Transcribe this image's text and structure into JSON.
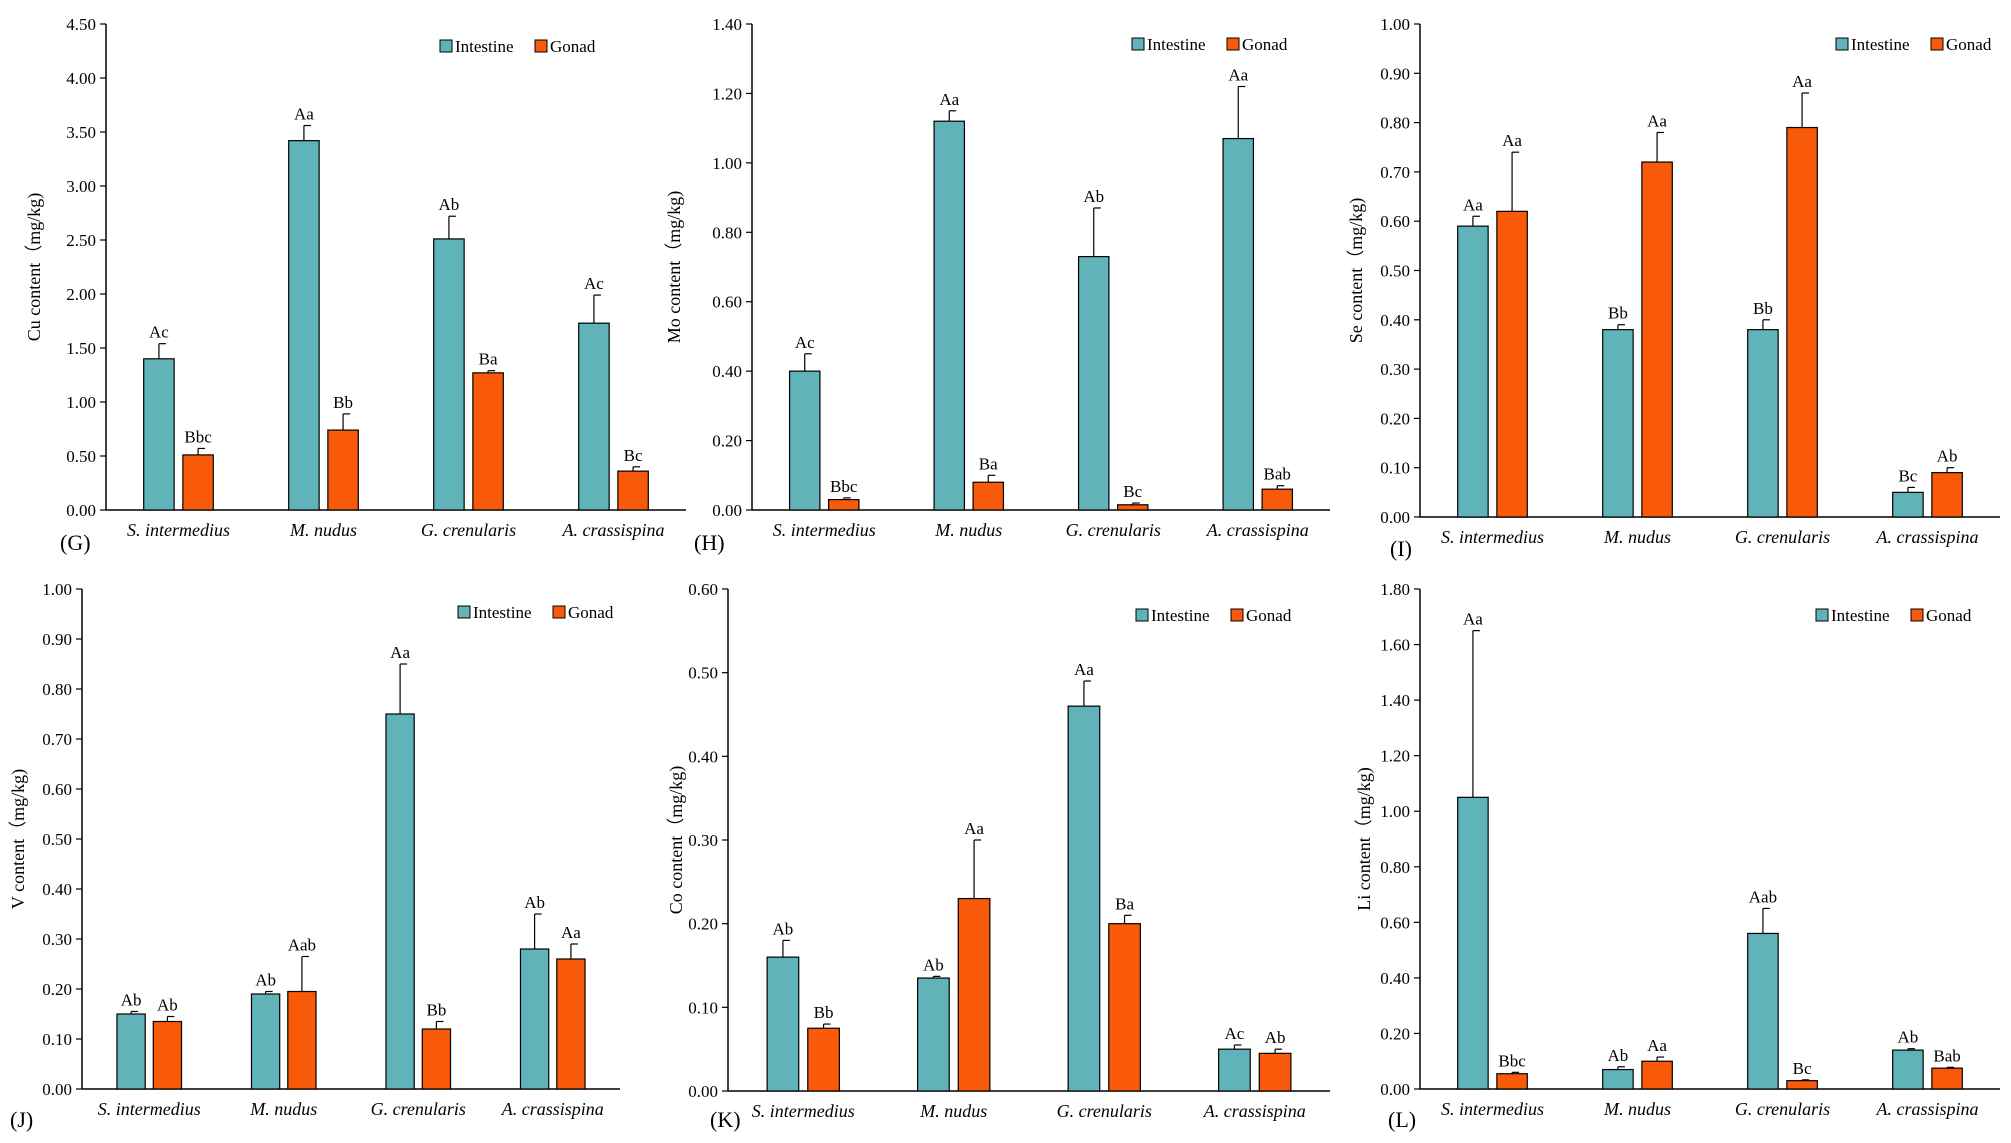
{
  "colors": {
    "intestine": "#5fb3b9",
    "gonad": "#f85a0a",
    "axis": "#000000"
  },
  "legend": {
    "intestine": "Intestine",
    "gonad": "Gonad"
  },
  "chart_data": [
    {
      "type": "bar",
      "panel": "(G)",
      "ylabel": "Cu content（mg/kg)",
      "categories": [
        "S. intermedius",
        "M. nudus",
        "G. crenularis",
        "A. crassispina"
      ],
      "ylim": [
        0,
        4.5
      ],
      "ticks": [
        "0.00",
        "0.50",
        "1.00",
        "1.50",
        "2.00",
        "2.50",
        "3.00",
        "3.50",
        "4.00",
        "4.50"
      ],
      "series": [
        {
          "name": "Intestine",
          "values": [
            1.4,
            3.42,
            2.51,
            1.73
          ],
          "errors": [
            0.14,
            0.14,
            0.21,
            0.26
          ],
          "labels": [
            "Ac",
            "Aa",
            "Ab",
            "Ac"
          ]
        },
        {
          "name": "Gonad",
          "values": [
            0.51,
            0.74,
            1.27,
            0.36
          ],
          "errors": [
            0.06,
            0.15,
            0.02,
            0.04
          ],
          "labels": [
            "Bbc",
            "Bb",
            "Ba",
            "Bc"
          ]
        }
      ]
    },
    {
      "type": "bar",
      "panel": "(H)",
      "ylabel": "Mo content（mg/kg)",
      "categories": [
        "S. intermedius",
        "M. nudus",
        "G. crenularis",
        "A. crassispina"
      ],
      "ylim": [
        0,
        1.4
      ],
      "ticks": [
        "0.00",
        "0.20",
        "0.40",
        "0.60",
        "0.80",
        "1.00",
        "1.20",
        "1.40"
      ],
      "series": [
        {
          "name": "Intestine",
          "values": [
            0.4,
            1.12,
            0.73,
            1.07
          ],
          "errors": [
            0.05,
            0.03,
            0.14,
            0.15
          ],
          "labels": [
            "Ac",
            "Aa",
            "Ab",
            "Aa"
          ]
        },
        {
          "name": "Gonad",
          "values": [
            0.03,
            0.08,
            0.015,
            0.06
          ],
          "errors": [
            0.005,
            0.02,
            0.005,
            0.01
          ],
          "labels": [
            "Bbc",
            "Ba",
            "Bc",
            "Bab"
          ]
        }
      ]
    },
    {
      "type": "bar",
      "panel": "(I)",
      "ylabel": "Se content（mg/kg)",
      "categories": [
        "S. intermedius",
        "M. nudus",
        "G. crenularis",
        "A. crassispina"
      ],
      "ylim": [
        0,
        1.0
      ],
      "ticks": [
        "0.00",
        "0.10",
        "0.20",
        "0.30",
        "0.40",
        "0.50",
        "0.60",
        "0.70",
        "0.80",
        "0.90",
        "1.00"
      ],
      "series": [
        {
          "name": "Intestine",
          "values": [
            0.59,
            0.38,
            0.38,
            0.05
          ],
          "errors": [
            0.02,
            0.01,
            0.02,
            0.01
          ],
          "labels": [
            "Aa",
            "Bb",
            "Bb",
            "Bc"
          ]
        },
        {
          "name": "Gonad",
          "values": [
            0.62,
            0.72,
            0.79,
            0.09
          ],
          "errors": [
            0.12,
            0.06,
            0.07,
            0.01
          ],
          "labels": [
            "Aa",
            "Aa",
            "Aa",
            "Ab"
          ]
        }
      ]
    },
    {
      "type": "bar",
      "panel": "(J)",
      "ylabel": "V content（mg/kg)",
      "categories": [
        "S. intermedius",
        "M. nudus",
        "G. crenularis",
        "A. crassispina"
      ],
      "ylim": [
        0,
        1.0
      ],
      "ticks": [
        "0.00",
        "0.10",
        "0.20",
        "0.30",
        "0.40",
        "0.50",
        "0.60",
        "0.70",
        "0.80",
        "0.90",
        "1.00"
      ],
      "series": [
        {
          "name": "Intestine",
          "values": [
            0.15,
            0.19,
            0.75,
            0.28
          ],
          "errors": [
            0.005,
            0.005,
            0.1,
            0.07
          ],
          "labels": [
            "Ab",
            "Ab",
            "Aa",
            "Ab"
          ]
        },
        {
          "name": "Gonad",
          "values": [
            0.135,
            0.195,
            0.12,
            0.26
          ],
          "errors": [
            0.01,
            0.07,
            0.015,
            0.03
          ],
          "labels": [
            "Ab",
            "Aab",
            "Bb",
            "Aa"
          ]
        }
      ]
    },
    {
      "type": "bar",
      "panel": "(K)",
      "ylabel": "Co content（mg/kg)",
      "categories": [
        "S. intermedius",
        "M. nudus",
        "G. crenularis",
        "A. crassispina"
      ],
      "ylim": [
        0,
        0.6
      ],
      "ticks": [
        "0.00",
        "0.10",
        "0.20",
        "0.30",
        "0.40",
        "0.50",
        "0.60"
      ],
      "series": [
        {
          "name": "Intestine",
          "values": [
            0.16,
            0.135,
            0.46,
            0.05
          ],
          "errors": [
            0.02,
            0.002,
            0.03,
            0.005
          ],
          "labels": [
            "Ab",
            "Ab",
            "Aa",
            "Ac"
          ]
        },
        {
          "name": "Gonad",
          "values": [
            0.075,
            0.23,
            0.2,
            0.045
          ],
          "errors": [
            0.005,
            0.07,
            0.01,
            0.005
          ],
          "labels": [
            "Bb",
            "Aa",
            "Ba",
            "Ab"
          ]
        }
      ]
    },
    {
      "type": "bar",
      "panel": "(L)",
      "ylabel": "Li content（mg/kg)",
      "categories": [
        "S. intermedius",
        "M. nudus",
        "G. crenularis",
        "A. crassispina"
      ],
      "ylim": [
        0,
        1.8
      ],
      "ticks": [
        "0.00",
        "0.20",
        "0.40",
        "0.60",
        "0.80",
        "1.00",
        "1.20",
        "1.40",
        "1.60",
        "1.80"
      ],
      "series": [
        {
          "name": "Intestine",
          "values": [
            1.05,
            0.07,
            0.56,
            0.14
          ],
          "errors": [
            0.6,
            0.01,
            0.09,
            0.005
          ],
          "labels": [
            "Aa",
            "Ab",
            "Aab",
            "Ab"
          ]
        },
        {
          "name": "Gonad",
          "values": [
            0.055,
            0.1,
            0.03,
            0.075
          ],
          "errors": [
            0.005,
            0.015,
            0.003,
            0.003
          ],
          "labels": [
            "Bbc",
            "Aa",
            "Bc",
            "Bab"
          ]
        }
      ]
    }
  ]
}
